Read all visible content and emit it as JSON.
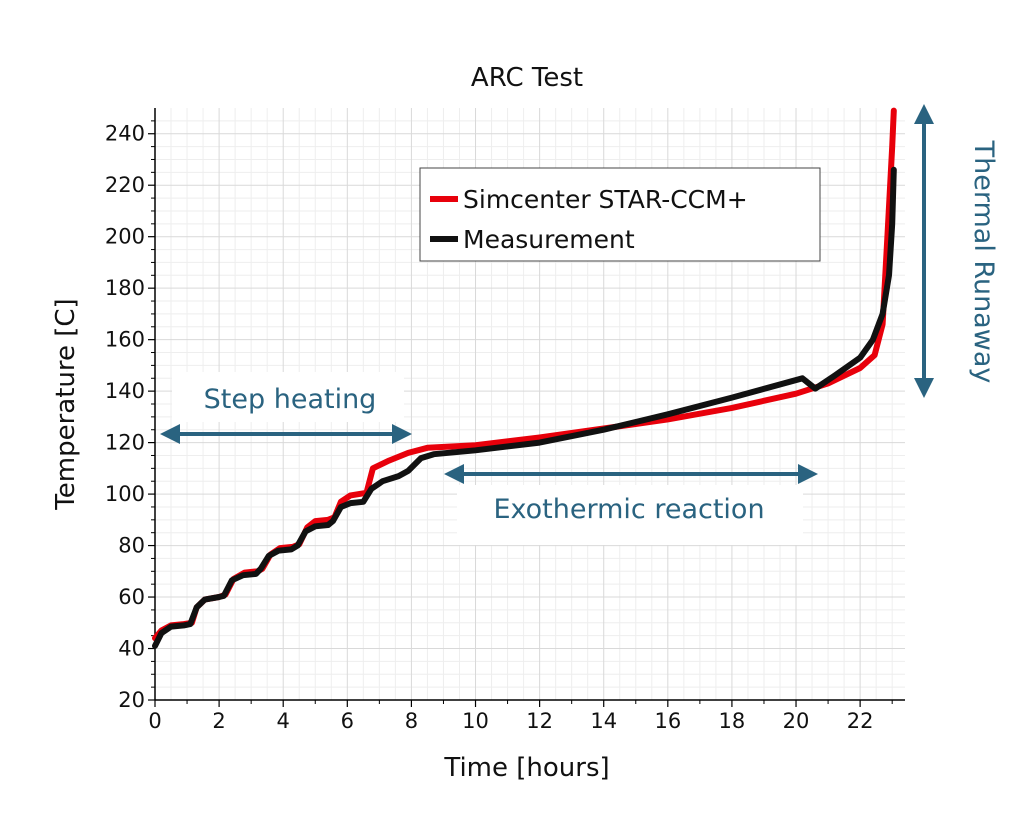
{
  "chart_data": {
    "type": "line",
    "title": "ARC Test",
    "xlabel": "Time [hours]",
    "ylabel": "Temperature [C]",
    "xlim": [
      0,
      23.4
    ],
    "ylim": [
      20,
      250
    ],
    "xticks": [
      0,
      2,
      4,
      6,
      8,
      10,
      12,
      14,
      16,
      18,
      20,
      22
    ],
    "yticks": [
      20,
      40,
      60,
      80,
      100,
      120,
      140,
      160,
      180,
      200,
      220,
      240
    ],
    "grid": true,
    "legend": {
      "position": "upper-center",
      "entries": [
        "Simcenter STAR-CCM+",
        "Measurement"
      ]
    },
    "series": [
      {
        "name": "Simcenter STAR-CCM+",
        "color": "#e8000b",
        "points": [
          [
            0,
            44
          ],
          [
            0.2,
            47
          ],
          [
            0.5,
            49
          ],
          [
            0.9,
            49.5
          ],
          [
            1.15,
            50
          ],
          [
            1.3,
            56
          ],
          [
            1.55,
            59
          ],
          [
            2.0,
            60
          ],
          [
            2.2,
            61
          ],
          [
            2.45,
            67
          ],
          [
            2.8,
            69.5
          ],
          [
            3.2,
            70
          ],
          [
            3.35,
            71
          ],
          [
            3.6,
            76.5
          ],
          [
            3.9,
            79
          ],
          [
            4.3,
            79.5
          ],
          [
            4.5,
            80.5
          ],
          [
            4.75,
            87
          ],
          [
            5.0,
            89.5
          ],
          [
            5.4,
            90
          ],
          [
            5.6,
            91
          ],
          [
            5.8,
            97
          ],
          [
            6.1,
            99.5
          ],
          [
            6.6,
            100.5
          ],
          [
            6.8,
            110
          ],
          [
            7.3,
            113
          ],
          [
            7.9,
            116
          ],
          [
            8.5,
            118
          ],
          [
            10,
            119
          ],
          [
            12,
            122
          ],
          [
            14,
            125.5
          ],
          [
            16,
            129
          ],
          [
            18,
            133.5
          ],
          [
            20,
            139
          ],
          [
            21,
            143
          ],
          [
            22,
            149
          ],
          [
            22.45,
            154
          ],
          [
            22.7,
            166
          ],
          [
            22.85,
            200
          ],
          [
            23.0,
            235
          ],
          [
            23.05,
            249
          ]
        ]
      },
      {
        "name": "Measurement",
        "color": "#111111",
        "points": [
          [
            0,
            41
          ],
          [
            0.2,
            46
          ],
          [
            0.5,
            48.5
          ],
          [
            0.9,
            49
          ],
          [
            1.1,
            49.5
          ],
          [
            1.3,
            56
          ],
          [
            1.55,
            59
          ],
          [
            2.0,
            60
          ],
          [
            2.15,
            60.5
          ],
          [
            2.4,
            66.5
          ],
          [
            2.75,
            68.5
          ],
          [
            3.15,
            69
          ],
          [
            3.3,
            71
          ],
          [
            3.55,
            76
          ],
          [
            3.85,
            78
          ],
          [
            4.25,
            78.5
          ],
          [
            4.45,
            80
          ],
          [
            4.7,
            85.5
          ],
          [
            5.0,
            87.5
          ],
          [
            5.4,
            88
          ],
          [
            5.55,
            89.5
          ],
          [
            5.8,
            95
          ],
          [
            6.1,
            96.5
          ],
          [
            6.5,
            97
          ],
          [
            6.75,
            102
          ],
          [
            7.1,
            105
          ],
          [
            7.6,
            107
          ],
          [
            7.9,
            109
          ],
          [
            8.3,
            114
          ],
          [
            8.7,
            115.5
          ],
          [
            10,
            117
          ],
          [
            12,
            120
          ],
          [
            14,
            125
          ],
          [
            16,
            131
          ],
          [
            18,
            137.5
          ],
          [
            20.2,
            145
          ],
          [
            20.6,
            141
          ],
          [
            21.2,
            146
          ],
          [
            22,
            153
          ],
          [
            22.4,
            160
          ],
          [
            22.7,
            170
          ],
          [
            22.9,
            185
          ],
          [
            23.0,
            205
          ],
          [
            23.05,
            226
          ]
        ]
      }
    ],
    "annotations": [
      {
        "label": "Step heating",
        "span": [
          0,
          8
        ]
      },
      {
        "label": "Exothermic reaction",
        "span": [
          9,
          20.5
        ]
      },
      {
        "label": "Thermal Runaway",
        "span": [
          140,
          250
        ]
      }
    ]
  },
  "colors": {
    "annotation": "#2a6380",
    "grid_major": "#d9d9d9",
    "grid_minor": "#eeeeee"
  }
}
